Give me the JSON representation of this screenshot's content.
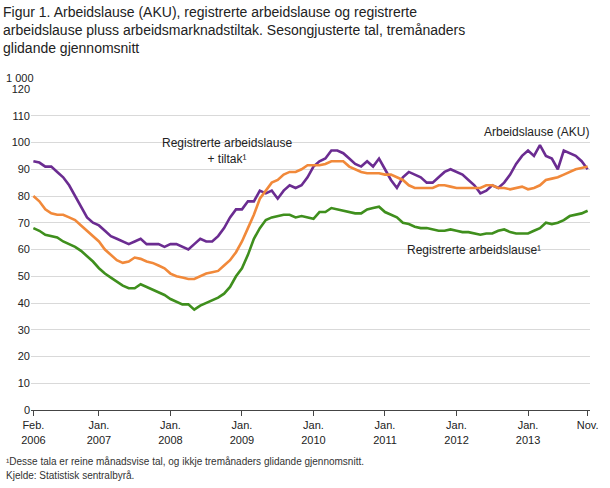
{
  "chart_data": {
    "type": "line",
    "title": "Figur 1. Arbeidslause (AKU), registrerte arbeidslause og registrerte\narbeidslause pluss arbeidsmarknadstiltak. Sesongjusterte tal, tremånaders\nglidande gjennomsnitt",
    "ylabel": "1 000",
    "notes": [
      "¹Desse tala er reine månadsvise tal, og ikkje tremånaders glidande gjennomsnitt.",
      "Kjelde: Statistisk sentralbyrå."
    ],
    "categories": [
      "Feb.\n2006",
      null,
      null,
      null,
      null,
      null,
      null,
      null,
      null,
      null,
      null,
      "Jan.\n2007",
      null,
      null,
      null,
      null,
      null,
      null,
      null,
      null,
      null,
      null,
      null,
      "Jan.\n2008",
      null,
      null,
      null,
      null,
      null,
      null,
      null,
      null,
      null,
      null,
      null,
      "Jan.\n2009",
      null,
      null,
      null,
      null,
      null,
      null,
      null,
      null,
      null,
      null,
      null,
      "Jan.\n2010",
      null,
      null,
      null,
      null,
      null,
      null,
      null,
      null,
      null,
      null,
      null,
      "Jan.\n2011",
      null,
      null,
      null,
      null,
      null,
      null,
      null,
      null,
      null,
      null,
      null,
      "Jan.\n2012",
      null,
      null,
      null,
      null,
      null,
      null,
      null,
      null,
      null,
      null,
      null,
      "Jan.\n2013",
      null,
      null,
      null,
      null,
      null,
      null,
      null,
      null,
      null,
      "Nov."
    ],
    "series": [
      {
        "name": "Arbeidslause (AKU)",
        "color": "#6b2c91",
        "values": [
          93,
          92.5,
          91,
          91,
          89,
          87,
          84,
          80,
          76,
          72,
          70,
          69,
          67,
          65,
          64,
          63,
          62,
          63,
          64,
          62,
          62,
          62,
          61,
          62,
          62,
          61,
          60,
          62,
          64,
          63,
          63,
          65,
          68,
          72,
          75,
          75,
          78,
          78,
          82,
          81,
          82,
          79,
          82,
          84,
          83,
          84,
          87,
          91,
          93,
          94,
          97,
          97,
          96,
          94,
          92,
          91,
          93,
          91,
          94,
          90,
          86,
          83,
          87,
          89,
          88,
          87,
          85,
          85,
          87,
          89,
          90,
          89,
          88,
          86,
          84,
          81,
          82,
          84,
          83,
          85,
          88,
          92,
          95,
          97,
          95,
          99,
          95,
          94,
          90,
          97,
          96,
          95,
          93,
          90
        ]
      },
      {
        "name": "Registrerte arbeidslause\n+ tiltak¹",
        "color": "#f1893a",
        "values": [
          80,
          78,
          75,
          73.5,
          73,
          73,
          72,
          71,
          69,
          67,
          65,
          63,
          60,
          58,
          56,
          55,
          55.5,
          57,
          56.5,
          55.5,
          55,
          54,
          53,
          51,
          50,
          49.5,
          49,
          49,
          50,
          51,
          51.5,
          52,
          54,
          56,
          59,
          63,
          68,
          73,
          79,
          82,
          85,
          86,
          88,
          89,
          89,
          90,
          91.5,
          91.5,
          91.5,
          92,
          93,
          93,
          93,
          91,
          90,
          89,
          88.5,
          88.5,
          88.5,
          88,
          88,
          87,
          86,
          84,
          83,
          83,
          83,
          83,
          84,
          84,
          83.5,
          83,
          83,
          83,
          83,
          83,
          84,
          84,
          83,
          83,
          82.5,
          83,
          83.5,
          82.5,
          83,
          84,
          86,
          86.5,
          87,
          88,
          89,
          90,
          90.5,
          91
        ]
      },
      {
        "name": "Registrerte arbeidslause¹",
        "color": "#3f8f1d",
        "values": [
          68,
          67,
          65.5,
          65,
          64.5,
          63,
          62,
          61,
          59.5,
          57.5,
          55.5,
          53,
          51,
          49.5,
          48,
          46.5,
          45.5,
          45.5,
          47,
          46,
          45,
          44,
          43,
          41.5,
          40.5,
          39.5,
          39.5,
          37.5,
          39,
          40,
          41,
          42,
          43.5,
          46,
          50,
          53,
          58,
          64,
          68,
          71,
          72,
          72.5,
          73,
          73,
          72,
          72.5,
          72,
          71.5,
          74,
          74,
          75.5,
          75,
          74.5,
          74,
          73.5,
          73.5,
          75,
          75.5,
          76,
          74,
          73,
          72,
          70,
          69.5,
          68.5,
          68,
          68,
          67.5,
          67,
          67,
          67.5,
          67,
          66.5,
          66.5,
          66,
          65.5,
          66,
          66,
          67,
          67.5,
          66.5,
          66,
          66,
          66,
          67,
          68,
          70,
          69.5,
          70,
          71,
          72.5,
          73,
          73.5,
          74.5
        ]
      }
    ],
    "ylim": [
      0,
      120
    ],
    "yticks": [
      0,
      10,
      20,
      30,
      40,
      50,
      60,
      70,
      80,
      90,
      100,
      110,
      120
    ],
    "grid": true
  }
}
